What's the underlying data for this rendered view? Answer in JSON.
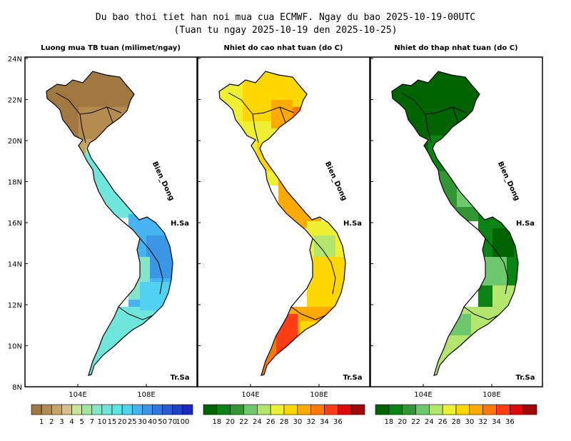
{
  "title_line1": "Du bao thoi tiet han noi mua cua ECMWF. Ngay du bao 2025-10-19-00UTC",
  "title_line2": "(Tuan tu ngay 2025-10-19 den 2025-10-25)",
  "panels": [
    {
      "title": "Luong mua TB tuan (milimet/ngay)"
    },
    {
      "title": "Nhiet do cao nhat tuan (do C)"
    },
    {
      "title": "Nhiet do thap nhat tuan (do C)"
    }
  ],
  "lat_ticks": [
    "24N",
    "22N",
    "20N",
    "18N",
    "16N",
    "14N",
    "12N",
    "10N",
    "8N"
  ],
  "lon_ticks": [
    "104E",
    "108E"
  ],
  "annotations": {
    "sea": "Bien_Dong",
    "hoang_sa": "H.Sa",
    "truong_sa": "Tr.Sa"
  },
  "rain_legend": {
    "labels": [
      "1",
      "2",
      "3",
      "4",
      "5",
      "7",
      "10",
      "15",
      "20",
      "25",
      "30",
      "40",
      "50",
      "70",
      "100"
    ],
    "colors": [
      "#a07840",
      "#b48c50",
      "#c8a464",
      "#d8c08c",
      "#c8e696",
      "#a0e6a0",
      "#82e6c8",
      "#6ee6dc",
      "#5ae6e6",
      "#50d2f0",
      "#46b4f0",
      "#3c96e6",
      "#3278dc",
      "#2a5ad2",
      "#2040c8",
      "#1e28be"
    ]
  },
  "temp_legend": {
    "labels": [
      "18",
      "20",
      "22",
      "24",
      "26",
      "28",
      "30",
      "32",
      "34",
      "36"
    ],
    "colors": [
      "#006400",
      "#0a8214",
      "#329632",
      "#6ec86e",
      "#b4e66e",
      "#f0f032",
      "#ffd700",
      "#ffaa00",
      "#ff7800",
      "#ff3c14",
      "#dc0a0a",
      "#a00a0a"
    ]
  },
  "chart_data": {
    "type": "heatmap",
    "panels": [
      {
        "variable": "Luong mua TB tuan",
        "unit": "milimet/ngay",
        "colorbar_levels": [
          1,
          2,
          3,
          4,
          5,
          7,
          10,
          15,
          20,
          25,
          30,
          40,
          50,
          70,
          100
        ]
      },
      {
        "variable": "Nhiet do cao nhat tuan",
        "unit": "do C",
        "colorbar_levels": [
          18,
          20,
          22,
          24,
          26,
          28,
          30,
          32,
          34,
          36
        ]
      },
      {
        "variable": "Nhiet do thap nhat tuan",
        "unit": "do C",
        "colorbar_levels": [
          18,
          20,
          22,
          24,
          26,
          28,
          30,
          32,
          34,
          36
        ]
      }
    ],
    "lat_range": [
      "8N",
      "24N"
    ],
    "lon_ticks": [
      "104E",
      "108E"
    ]
  }
}
